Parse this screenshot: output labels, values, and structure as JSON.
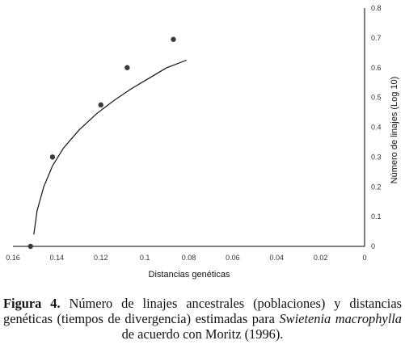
{
  "chart_data": {
    "type": "scatter",
    "xlabel": "Distancias genéticas",
    "ylabel": "Número de linajes (Log 10)",
    "x_reversed": true,
    "xlim": [
      0.16,
      0
    ],
    "ylim": [
      0,
      0.8
    ],
    "x_ticks": [
      "0.16",
      "0.14",
      "0.12",
      "0.1",
      "0.08",
      "0.06",
      "0.04",
      "0.02",
      "0"
    ],
    "y_ticks": [
      "0",
      "0.1",
      "0.2",
      "0.3",
      "0.4",
      "0.5",
      "0.6",
      "0.7",
      "0.8"
    ],
    "grid": false,
    "legend": "none",
    "series": [
      {
        "points": [
          {
            "x": 0.152,
            "y": 0.0
          },
          {
            "x": 0.142,
            "y": 0.3
          },
          {
            "x": 0.12,
            "y": 0.475
          },
          {
            "x": 0.108,
            "y": 0.6
          },
          {
            "x": 0.087,
            "y": 0.695
          }
        ]
      }
    ],
    "trendline": {
      "x": [
        0.1505,
        0.149,
        0.146,
        0.142,
        0.137,
        0.13,
        0.122,
        0.114,
        0.106,
        0.098,
        0.09,
        0.081
      ],
      "y": [
        0.04,
        0.12,
        0.2,
        0.27,
        0.33,
        0.39,
        0.445,
        0.49,
        0.53,
        0.565,
        0.6,
        0.625
      ]
    }
  },
  "caption": {
    "label": "Figura 4.",
    "text_before_italic": " Número de linajes ancestrales (poblaciones) y distancias genéticas (tiempos de divergencia) estimadas para ",
    "italic": "Swietenia macrophylla",
    "text_after_italic": " de acuerdo con Moritz (1996)."
  },
  "colors": {
    "point": "#3a3a3a",
    "line": "#111111",
    "axis": "#000000"
  }
}
